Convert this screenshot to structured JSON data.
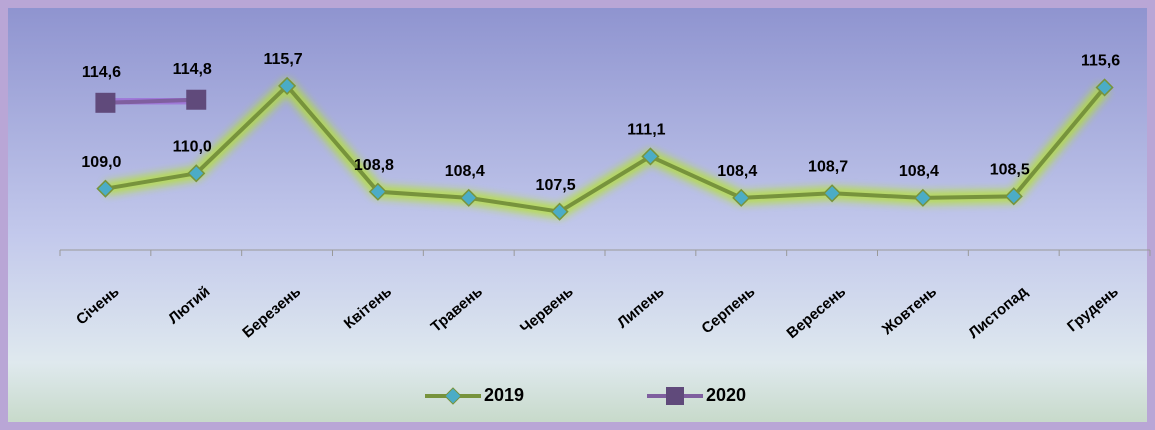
{
  "chart_data": {
    "type": "line",
    "categories": [
      "Січень",
      "Лютий",
      "Березень",
      "Квітень",
      "Травень",
      "Червень",
      "Липень",
      "Серпень",
      "Вересень",
      "Жовтень",
      "Листопад",
      "Грудень"
    ],
    "series": [
      {
        "name": "2019",
        "color": "#77933c",
        "marker_color": "#4bacc6",
        "values": [
          109.0,
          110.0,
          115.7,
          108.8,
          108.4,
          107.5,
          111.1,
          108.4,
          108.7,
          108.4,
          108.5,
          115.6
        ],
        "value_labels": [
          "109,0",
          "110,0",
          "115,7",
          "108,8",
          "108,4",
          "107,5",
          "111,1",
          "108,4",
          "108,7",
          "108,4",
          "108,5",
          "115,6"
        ]
      },
      {
        "name": "2020",
        "color": "#7f5f9f",
        "marker_color": "#604a7b",
        "values": [
          114.6,
          114.8,
          null,
          null,
          null,
          null,
          null,
          null,
          null,
          null,
          null,
          null
        ],
        "value_labels": [
          "114,6",
          "114,8",
          null,
          null,
          null,
          null,
          null,
          null,
          null,
          null,
          null,
          null
        ]
      }
    ],
    "ylim": [
      105,
      120
    ],
    "grid": false,
    "legend": "bottom"
  }
}
